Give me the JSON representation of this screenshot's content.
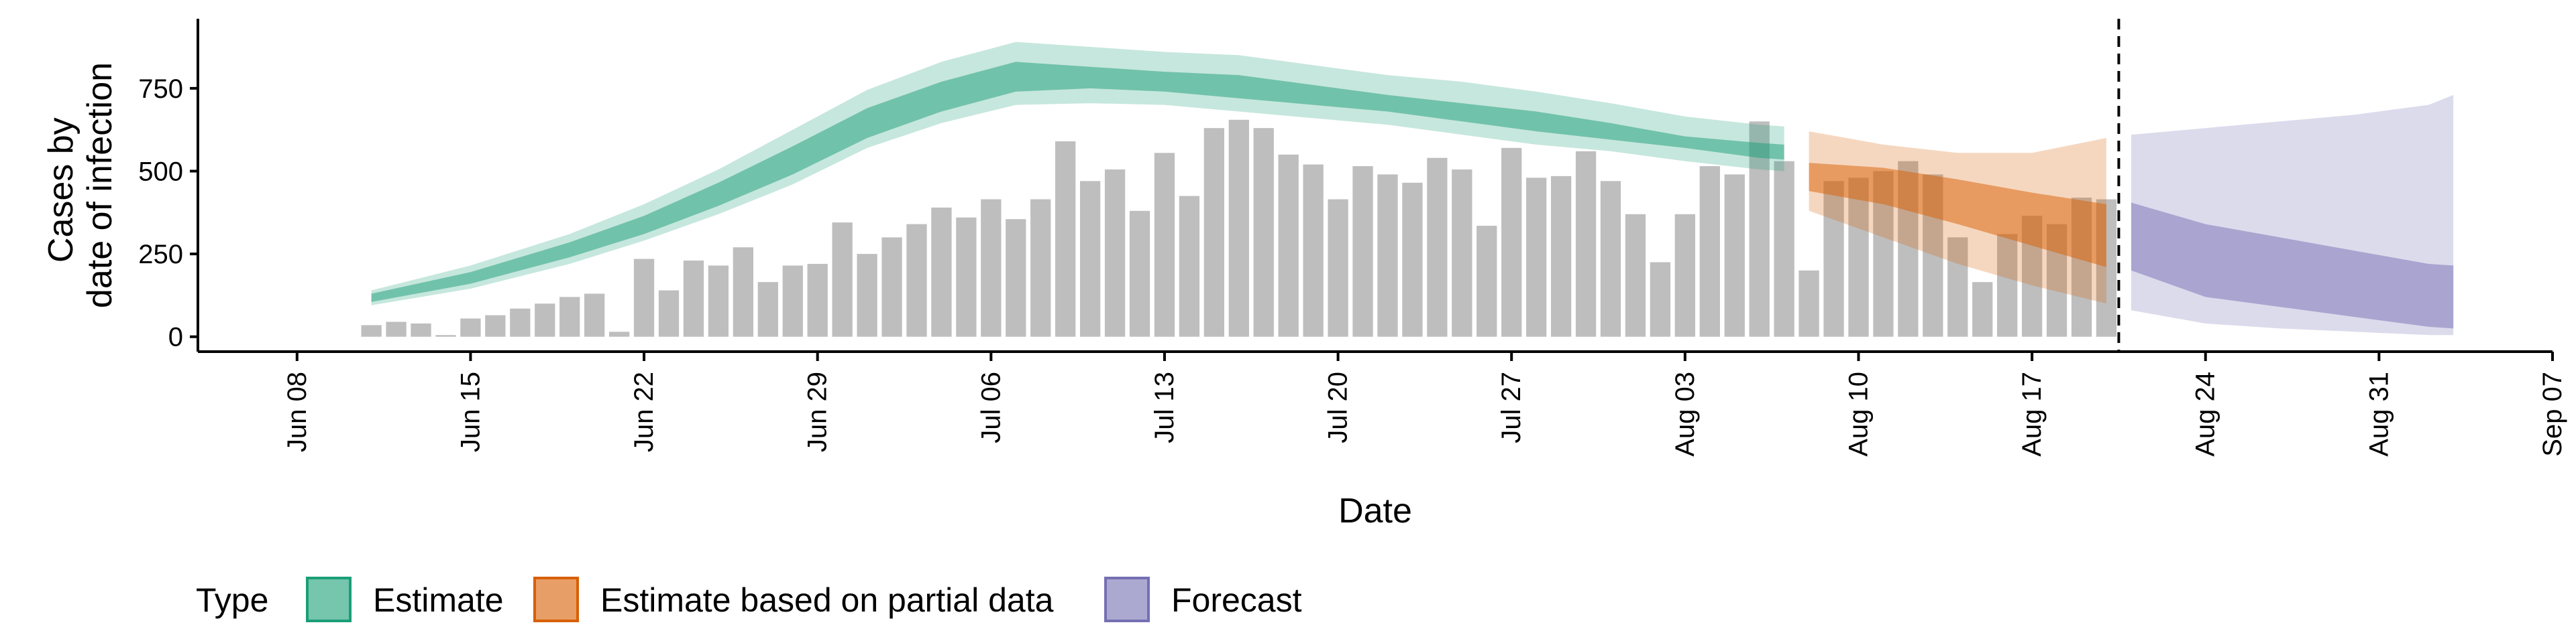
{
  "chart_data": {
    "type": "bar",
    "title": "",
    "xlabel": "Date",
    "ylabel_lines": [
      "Cases by",
      "date of infection"
    ],
    "y_ticks": [
      0,
      250,
      500,
      750
    ],
    "ylim": [
      -45,
      960
    ],
    "xlim": [
      "2020-06-04",
      "2020-09-07"
    ],
    "x_ticks": [
      {
        "date": "2020-06-08",
        "label": "Jun 08"
      },
      {
        "date": "2020-06-15",
        "label": "Jun 15"
      },
      {
        "date": "2020-06-22",
        "label": "Jun 22"
      },
      {
        "date": "2020-06-29",
        "label": "Jun 29"
      },
      {
        "date": "2020-07-06",
        "label": "Jul 06"
      },
      {
        "date": "2020-07-13",
        "label": "Jul 13"
      },
      {
        "date": "2020-07-20",
        "label": "Jul 20"
      },
      {
        "date": "2020-07-27",
        "label": "Jul 27"
      },
      {
        "date": "2020-08-03",
        "label": "Aug 03"
      },
      {
        "date": "2020-08-10",
        "label": "Aug 10"
      },
      {
        "date": "2020-08-17",
        "label": "Aug 17"
      },
      {
        "date": "2020-08-24",
        "label": "Aug 24"
      },
      {
        "date": "2020-08-31",
        "label": "Aug 31"
      },
      {
        "date": "2020-09-07",
        "label": "Sep 07"
      }
    ],
    "bar_color": "#bebebe",
    "bar_dates": [
      "2020-06-11",
      "2020-06-12",
      "2020-06-13",
      "2020-06-14",
      "2020-06-15",
      "2020-06-16",
      "2020-06-17",
      "2020-06-18",
      "2020-06-19",
      "2020-06-20",
      "2020-06-21",
      "2020-06-22",
      "2020-06-23",
      "2020-06-24",
      "2020-06-25",
      "2020-06-26",
      "2020-06-27",
      "2020-06-28",
      "2020-06-29",
      "2020-06-30",
      "2020-07-01",
      "2020-07-02",
      "2020-07-03",
      "2020-07-04",
      "2020-07-05",
      "2020-07-06",
      "2020-07-07",
      "2020-07-08",
      "2020-07-09",
      "2020-07-10",
      "2020-07-11",
      "2020-07-12",
      "2020-07-13",
      "2020-07-14",
      "2020-07-15",
      "2020-07-16",
      "2020-07-17",
      "2020-07-18",
      "2020-07-19",
      "2020-07-20",
      "2020-07-21",
      "2020-07-22",
      "2020-07-23",
      "2020-07-24",
      "2020-07-25",
      "2020-07-26",
      "2020-07-27",
      "2020-07-28",
      "2020-07-29",
      "2020-07-30",
      "2020-07-31",
      "2020-08-01",
      "2020-08-02",
      "2020-08-03",
      "2020-08-04",
      "2020-08-05",
      "2020-08-06",
      "2020-08-07",
      "2020-08-08",
      "2020-08-09",
      "2020-08-10",
      "2020-08-11",
      "2020-08-12",
      "2020-08-13",
      "2020-08-14",
      "2020-08-15",
      "2020-08-16",
      "2020-08-17",
      "2020-08-18",
      "2020-08-19",
      "2020-08-20"
    ],
    "bar_values": [
      35,
      45,
      40,
      5,
      55,
      65,
      85,
      100,
      120,
      130,
      15,
      235,
      140,
      230,
      215,
      270,
      165,
      215,
      220,
      345,
      250,
      300,
      340,
      390,
      360,
      415,
      355,
      415,
      590,
      470,
      505,
      380,
      555,
      425,
      630,
      655,
      630,
      550,
      520,
      415,
      515,
      490,
      465,
      540,
      505,
      335,
      570,
      480,
      485,
      560,
      470,
      370,
      225,
      370,
      515,
      490,
      650,
      530,
      200,
      470,
      480,
      500,
      530,
      490,
      300,
      165,
      310,
      365,
      340,
      420,
      415
    ],
    "series": [
      {
        "name": "Estimate",
        "fill": "#1b9e77",
        "dates": [
          "2020-06-11",
          "2020-06-15",
          "2020-06-19",
          "2020-06-22",
          "2020-06-25",
          "2020-06-28",
          "2020-07-01",
          "2020-07-04",
          "2020-07-07",
          "2020-07-10",
          "2020-07-13",
          "2020-07-16",
          "2020-07-19",
          "2020-07-22",
          "2020-07-25",
          "2020-07-28",
          "2020-07-31",
          "2020-08-03",
          "2020-08-06",
          "2020-08-07"
        ],
        "inner_lower": [
          105,
          160,
          240,
          310,
          395,
          490,
          600,
          680,
          740,
          750,
          740,
          720,
          700,
          680,
          650,
          620,
          595,
          570,
          540,
          535
        ],
        "inner_upper": [
          130,
          195,
          285,
          365,
          465,
          575,
          690,
          770,
          830,
          815,
          800,
          790,
          760,
          730,
          705,
          680,
          645,
          605,
          585,
          580
        ],
        "outer_lower": [
          95,
          145,
          220,
          290,
          370,
          460,
          570,
          645,
          700,
          705,
          700,
          680,
          660,
          640,
          610,
          580,
          560,
          530,
          505,
          500
        ],
        "outer_upper": [
          140,
          215,
          310,
          400,
          505,
          625,
          745,
          830,
          890,
          875,
          860,
          850,
          820,
          790,
          770,
          740,
          705,
          665,
          640,
          635
        ]
      },
      {
        "name": "Estimate based on partial data",
        "fill": "#d95f02",
        "dates": [
          "2020-08-08",
          "2020-08-11",
          "2020-08-14",
          "2020-08-17",
          "2020-08-20"
        ],
        "inner_lower": [
          440,
          400,
          340,
          275,
          210
        ],
        "inner_upper": [
          525,
          510,
          475,
          435,
          400
        ],
        "outer_lower": [
          380,
          300,
          220,
          155,
          100
        ],
        "outer_upper": [
          620,
          580,
          555,
          555,
          600
        ]
      },
      {
        "name": "Forecast",
        "fill": "#7570b3",
        "dates": [
          "2020-08-21",
          "2020-08-24",
          "2020-08-27",
          "2020-08-30",
          "2020-09-02",
          "2020-09-03"
        ],
        "inner_lower": [
          200,
          120,
          90,
          60,
          30,
          25
        ],
        "inner_upper": [
          405,
          340,
          300,
          260,
          220,
          215
        ],
        "outer_lower": [
          80,
          40,
          25,
          15,
          5,
          5
        ],
        "outer_upper": [
          610,
          630,
          650,
          670,
          700,
          730
        ]
      }
    ],
    "forecast_line_date": "2020-08-20",
    "legend": {
      "title": "Type",
      "placement": "bottom",
      "items": [
        "Estimate",
        "Estimate based on partial data",
        "Forecast"
      ],
      "colors": [
        "#1b9e77",
        "#d95f02",
        "#7570b3"
      ]
    }
  }
}
